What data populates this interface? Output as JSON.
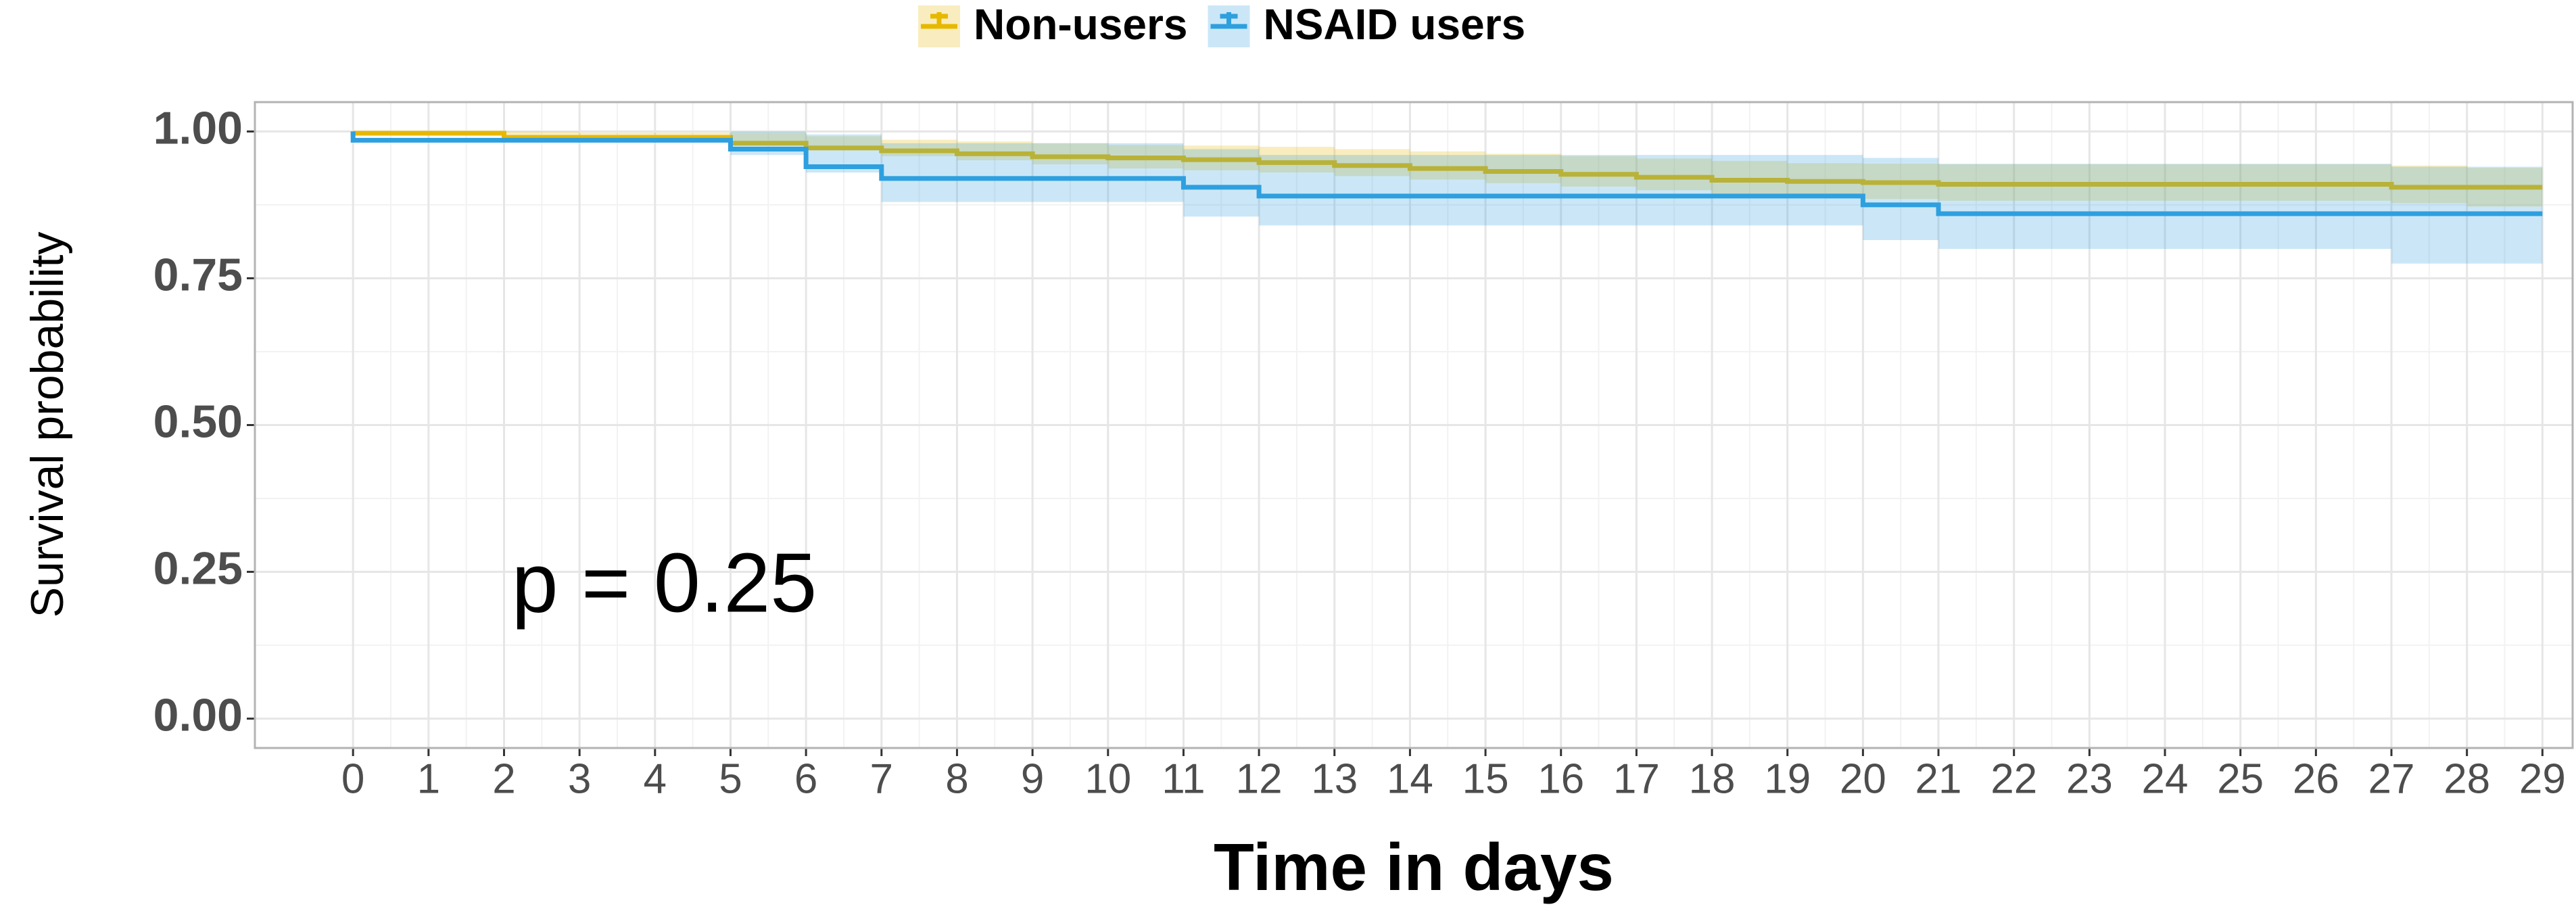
{
  "chart_data": {
    "type": "step",
    "xlabel": "Time in days",
    "ylabel": "Survival probability",
    "annotation": "p = 0.25",
    "xlim": [
      -1.3,
      29.4
    ],
    "ylim": [
      -0.05,
      1.05
    ],
    "xticks": [
      0,
      1,
      2,
      3,
      4,
      5,
      6,
      7,
      8,
      9,
      10,
      11,
      12,
      13,
      14,
      15,
      16,
      17,
      18,
      19,
      20,
      21,
      22,
      23,
      24,
      25,
      26,
      27,
      28,
      29
    ],
    "yticks": [
      {
        "value": 0,
        "label": "0.00"
      },
      {
        "value": 0.25,
        "label": "0.25"
      },
      {
        "value": 0.5,
        "label": "0.50"
      },
      {
        "value": 0.75,
        "label": "0.75"
      },
      {
        "value": 1,
        "label": "1.00"
      }
    ],
    "grid": true,
    "legend": "top",
    "series": [
      {
        "name": "Non-users",
        "color": "#E7B800",
        "x": [
          0,
          2,
          3,
          5,
          6,
          7,
          8,
          9,
          10,
          11,
          12,
          13,
          14,
          15,
          16,
          17,
          18,
          19,
          20,
          21,
          27,
          28,
          29
        ],
        "values": [
          1.0,
          0.997,
          0.99,
          0.99,
          0.98,
          0.972,
          0.967,
          0.962,
          0.957,
          0.955,
          0.952,
          0.947,
          0.942,
          0.937,
          0.932,
          0.927,
          0.922,
          0.917,
          0.915,
          0.913,
          0.91,
          0.905,
          0.905
        ],
        "lower": [
          1.0,
          0.99,
          0.982,
          0.98,
          0.968,
          0.958,
          0.951,
          0.944,
          0.937,
          0.934,
          0.93,
          0.924,
          0.918,
          0.912,
          0.906,
          0.9,
          0.894,
          0.888,
          0.885,
          0.882,
          0.878,
          0.872,
          0.872
        ],
        "upper": [
          1.0,
          1.0,
          0.998,
          0.998,
          0.992,
          0.986,
          0.983,
          0.98,
          0.977,
          0.976,
          0.974,
          0.97,
          0.966,
          0.962,
          0.958,
          0.954,
          0.95,
          0.946,
          0.945,
          0.944,
          0.942,
          0.938,
          0.938
        ]
      },
      {
        "name": "NSAID users",
        "color": "#2E9FDF",
        "x": [
          0,
          5,
          6,
          7,
          11,
          12,
          20,
          21,
          27,
          29
        ],
        "values": [
          1.0,
          0.985,
          0.97,
          0.94,
          0.92,
          0.905,
          0.89,
          0.875,
          0.86,
          0.86
        ],
        "lower": [
          1.0,
          0.96,
          0.93,
          0.88,
          0.855,
          0.84,
          0.815,
          0.8,
          0.775,
          0.775
        ],
        "upper": [
          1.0,
          1.0,
          0.995,
          0.98,
          0.97,
          0.96,
          0.955,
          0.945,
          0.94,
          0.94
        ]
      }
    ]
  }
}
